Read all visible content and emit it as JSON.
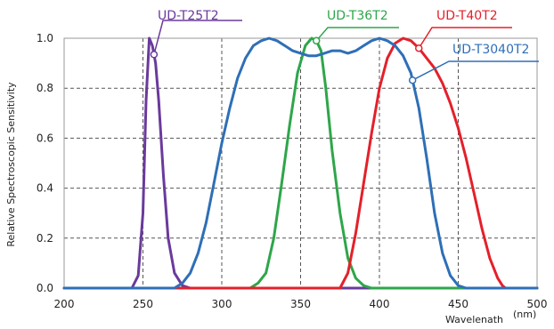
{
  "chart_data": {
    "type": "line",
    "title": "",
    "xlabel": "Wavelenath",
    "xunit": "(nm)",
    "ylabel": "Relative Spectroscopic Sensitivity",
    "xlim": [
      200,
      500
    ],
    "ylim": [
      0,
      1.0
    ],
    "x_ticks": [
      "200",
      "250",
      "300",
      "350",
      "400",
      "450",
      "500"
    ],
    "y_ticks": [
      "0.0",
      "0.2",
      "0.4",
      "0.6",
      "0.8",
      "1.0"
    ],
    "grid": true,
    "grid_style": "dashed",
    "series": [
      {
        "name": "UD-T25T2",
        "color": "#6a3a9c",
        "x": [
          200,
          243,
          247,
          250,
          252,
          254,
          256,
          258,
          260,
          263,
          266,
          270,
          275,
          280,
          500
        ],
        "y": [
          0,
          0,
          0.05,
          0.3,
          0.75,
          1.0,
          0.97,
          0.9,
          0.75,
          0.45,
          0.2,
          0.06,
          0.01,
          0,
          0
        ]
      },
      {
        "name": "UD-T36T2",
        "color": "#2ea64a",
        "x": [
          200,
          318,
          323,
          328,
          333,
          338,
          343,
          348,
          353,
          357,
          360,
          363,
          366,
          370,
          375,
          380,
          385,
          390,
          395,
          500
        ],
        "y": [
          0,
          0,
          0.02,
          0.06,
          0.2,
          0.42,
          0.65,
          0.86,
          0.97,
          1.0,
          0.99,
          0.95,
          0.8,
          0.55,
          0.3,
          0.12,
          0.04,
          0.01,
          0,
          0
        ]
      },
      {
        "name": "UD-T40T2",
        "color": "#e4202a",
        "x": [
          200,
          375,
          380,
          385,
          390,
          395,
          400,
          405,
          410,
          415,
          420,
          425,
          430,
          435,
          440,
          445,
          450,
          455,
          460,
          465,
          470,
          475,
          478,
          480,
          500
        ],
        "y": [
          0,
          0,
          0.06,
          0.22,
          0.42,
          0.62,
          0.8,
          0.92,
          0.98,
          1.0,
          0.99,
          0.96,
          0.92,
          0.88,
          0.82,
          0.74,
          0.64,
          0.52,
          0.38,
          0.24,
          0.12,
          0.04,
          0.01,
          0,
          0
        ]
      },
      {
        "name": "UD-T3040T2",
        "color": "#2e6fb7",
        "x": [
          200,
          270,
          275,
          280,
          285,
          290,
          295,
          300,
          305,
          310,
          315,
          320,
          325,
          330,
          335,
          340,
          345,
          350,
          355,
          360,
          365,
          370,
          375,
          380,
          385,
          390,
          395,
          400,
          405,
          410,
          415,
          420,
          425,
          430,
          435,
          440,
          445,
          450,
          455,
          460,
          500
        ],
        "y": [
          0,
          0,
          0.02,
          0.06,
          0.14,
          0.26,
          0.42,
          0.58,
          0.72,
          0.84,
          0.92,
          0.97,
          0.99,
          1.0,
          0.99,
          0.97,
          0.95,
          0.94,
          0.93,
          0.93,
          0.94,
          0.95,
          0.95,
          0.94,
          0.95,
          0.97,
          0.99,
          1.0,
          0.99,
          0.97,
          0.93,
          0.86,
          0.72,
          0.52,
          0.3,
          0.14,
          0.05,
          0.01,
          0,
          0,
          0
        ]
      }
    ]
  }
}
